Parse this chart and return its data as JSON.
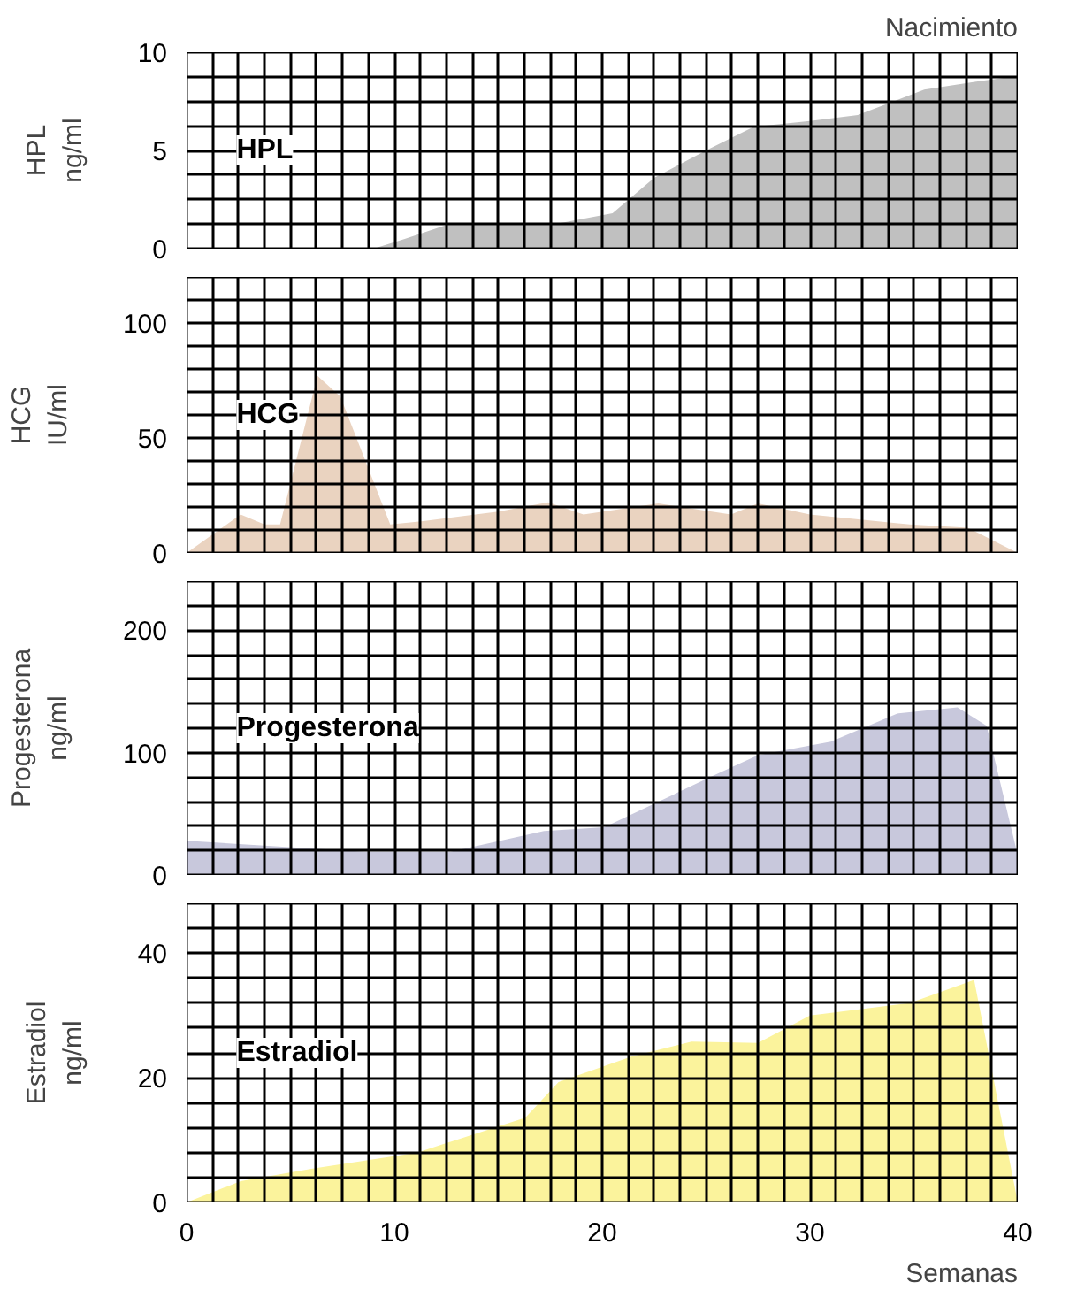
{
  "chart_data": [
    {
      "type": "area",
      "ylabel": "HPL\nng/ml",
      "annotations": [
        "Nacimiento"
      ],
      "tick_labels": "y",
      "grid": true,
      "xlim": [
        0,
        40
      ],
      "xticks": [
        {
          "value": 0,
          "label": null
        },
        {
          "value": 1.25,
          "label": null
        },
        {
          "value": 2.5,
          "label": null
        },
        {
          "value": 3.75,
          "label": null
        },
        {
          "value": 5,
          "label": null
        },
        {
          "value": 6.25,
          "label": null
        },
        {
          "value": 7.5,
          "label": null
        },
        {
          "value": 8.75,
          "label": null
        },
        {
          "value": 10,
          "label": null
        },
        {
          "value": 11.25,
          "label": null
        },
        {
          "value": 12.5,
          "label": null
        },
        {
          "value": 13.75,
          "label": null
        },
        {
          "value": 15,
          "label": null
        },
        {
          "value": 16.25,
          "label": null
        },
        {
          "value": 17.5,
          "label": null
        },
        {
          "value": 18.75,
          "label": null
        },
        {
          "value": 20,
          "label": null
        },
        {
          "value": 21.25,
          "label": null
        },
        {
          "value": 22.5,
          "label": null
        },
        {
          "value": 23.75,
          "label": null
        },
        {
          "value": 25,
          "label": null
        },
        {
          "value": 26.25,
          "label": null
        },
        {
          "value": 27.5,
          "label": null
        },
        {
          "value": 28.75,
          "label": null
        },
        {
          "value": 30,
          "label": null
        },
        {
          "value": 31.25,
          "label": null
        },
        {
          "value": 32.5,
          "label": null
        },
        {
          "value": 33.75,
          "label": null
        },
        {
          "value": 35,
          "label": null
        },
        {
          "value": 36.25,
          "label": null
        },
        {
          "value": 37.5,
          "label": null
        },
        {
          "value": 38.75,
          "label": null
        },
        {
          "value": 40,
          "label": null
        }
      ],
      "ylim": [
        0,
        10
      ],
      "yticks": [
        0,
        {
          "value": 1.25,
          "label": null
        },
        {
          "value": 2.5,
          "label": null
        },
        {
          "value": 3.75,
          "label": null
        },
        5,
        {
          "value": 6.25,
          "label": null
        },
        {
          "value": 7.5,
          "label": null
        },
        {
          "value": 8.75,
          "label": null
        },
        10
      ],
      "series": [
        {
          "name": "HPL",
          "color": "#c0c0c0",
          "x": [
            9,
            10.5,
            12.5,
            17.5,
            20.5,
            22.5,
            25,
            27.3,
            30,
            32.3,
            35.5,
            38,
            40
          ],
          "values": [
            0,
            0.5,
            1.2,
            1.2,
            1.8,
            3.6,
            5.0,
            6.2,
            6.5,
            6.8,
            8.1,
            8.5,
            8.8
          ]
        }
      ]
    },
    {
      "type": "area",
      "ylabel": "HCG\nIU/ml",
      "tick_labels": "y",
      "grid": true,
      "xlim": [
        0,
        40
      ],
      "xticks": [
        {
          "value": 0,
          "label": null
        },
        {
          "value": 1.25,
          "label": null
        },
        {
          "value": 2.5,
          "label": null
        },
        {
          "value": 3.75,
          "label": null
        },
        {
          "value": 5,
          "label": null
        },
        {
          "value": 6.25,
          "label": null
        },
        {
          "value": 7.5,
          "label": null
        },
        {
          "value": 8.75,
          "label": null
        },
        {
          "value": 10,
          "label": null
        },
        {
          "value": 11.25,
          "label": null
        },
        {
          "value": 12.5,
          "label": null
        },
        {
          "value": 13.75,
          "label": null
        },
        {
          "value": 15,
          "label": null
        },
        {
          "value": 16.25,
          "label": null
        },
        {
          "value": 17.5,
          "label": null
        },
        {
          "value": 18.75,
          "label": null
        },
        {
          "value": 20,
          "label": null
        },
        {
          "value": 21.25,
          "label": null
        },
        {
          "value": 22.5,
          "label": null
        },
        {
          "value": 23.75,
          "label": null
        },
        {
          "value": 25,
          "label": null
        },
        {
          "value": 26.25,
          "label": null
        },
        {
          "value": 27.5,
          "label": null
        },
        {
          "value": 28.75,
          "label": null
        },
        {
          "value": 30,
          "label": null
        },
        {
          "value": 31.25,
          "label": null
        },
        {
          "value": 32.5,
          "label": null
        },
        {
          "value": 33.75,
          "label": null
        },
        {
          "value": 35,
          "label": null
        },
        {
          "value": 36.25,
          "label": null
        },
        {
          "value": 37.5,
          "label": null
        },
        {
          "value": 38.75,
          "label": null
        },
        {
          "value": 40,
          "label": null
        }
      ],
      "ylim": [
        0,
        120
      ],
      "yticks": [
        0,
        {
          "value": 10,
          "label": null
        },
        {
          "value": 20,
          "label": null
        },
        {
          "value": 30,
          "label": null
        },
        {
          "value": 40,
          "label": null
        },
        50,
        {
          "value": 60,
          "label": null
        },
        {
          "value": 70,
          "label": null
        },
        {
          "value": 80,
          "label": null
        },
        {
          "value": 90,
          "label": null
        },
        100,
        {
          "value": 110,
          "label": null
        },
        {
          "value": 120,
          "label": null
        }
      ],
      "series": [
        {
          "name": "HCG",
          "color": "#ead3c0",
          "x": [
            0,
            2.6,
            3.75,
            4.5,
            6.3,
            7.4,
            9.8,
            11.4,
            15,
            17.4,
            19.1,
            22.7,
            26.2,
            27.5,
            30,
            34.8,
            37.6,
            40
          ],
          "values": [
            0,
            16.7,
            12.4,
            12.4,
            77,
            68,
            12.4,
            13.8,
            18,
            22,
            16.7,
            21.5,
            16.7,
            21.5,
            16.7,
            12.4,
            11,
            0
          ]
        }
      ]
    },
    {
      "type": "area",
      "ylabel": "Progesterona\nng/ml",
      "tick_labels": "y",
      "grid": true,
      "xlim": [
        0,
        40
      ],
      "xticks": [
        {
          "value": 0,
          "label": null
        },
        {
          "value": 1.25,
          "label": null
        },
        {
          "value": 2.5,
          "label": null
        },
        {
          "value": 3.75,
          "label": null
        },
        {
          "value": 5,
          "label": null
        },
        {
          "value": 6.25,
          "label": null
        },
        {
          "value": 7.5,
          "label": null
        },
        {
          "value": 8.75,
          "label": null
        },
        {
          "value": 10,
          "label": null
        },
        {
          "value": 11.25,
          "label": null
        },
        {
          "value": 12.5,
          "label": null
        },
        {
          "value": 13.75,
          "label": null
        },
        {
          "value": 15,
          "label": null
        },
        {
          "value": 16.25,
          "label": null
        },
        {
          "value": 17.5,
          "label": null
        },
        {
          "value": 18.75,
          "label": null
        },
        {
          "value": 20,
          "label": null
        },
        {
          "value": 21.25,
          "label": null
        },
        {
          "value": 22.5,
          "label": null
        },
        {
          "value": 23.75,
          "label": null
        },
        {
          "value": 25,
          "label": null
        },
        {
          "value": 26.25,
          "label": null
        },
        {
          "value": 27.5,
          "label": null
        },
        {
          "value": 28.75,
          "label": null
        },
        {
          "value": 30,
          "label": null
        },
        {
          "value": 31.25,
          "label": null
        },
        {
          "value": 32.5,
          "label": null
        },
        {
          "value": 33.75,
          "label": null
        },
        {
          "value": 35,
          "label": null
        },
        {
          "value": 36.25,
          "label": null
        },
        {
          "value": 37.5,
          "label": null
        },
        {
          "value": 38.75,
          "label": null
        },
        {
          "value": 40,
          "label": null
        }
      ],
      "ylim": [
        0,
        240
      ],
      "yticks": [
        0,
        {
          "value": 20,
          "label": null
        },
        {
          "value": 40,
          "label": null
        },
        {
          "value": 60,
          "label": null
        },
        {
          "value": 80,
          "label": null
        },
        100,
        {
          "value": 120,
          "label": null
        },
        {
          "value": 140,
          "label": null
        },
        {
          "value": 160,
          "label": null
        },
        {
          "value": 180,
          "label": null
        },
        200,
        {
          "value": 220,
          "label": null
        },
        {
          "value": 240,
          "label": null
        }
      ],
      "series": [
        {
          "name": "Progesterona",
          "color": "#c8c8dc",
          "x": [
            0,
            8.6,
            12.7,
            17.2,
            20.1,
            25.2,
            27.5,
            31,
            34.2,
            37.1,
            38.5,
            40
          ],
          "values": [
            28,
            19,
            19,
            36,
            39,
            80,
            98,
            109,
            132,
            137,
            122,
            16
          ]
        }
      ]
    },
    {
      "type": "area",
      "ylabel": "Estradiol\nng/ml",
      "xlabel": "Semanas",
      "grid": true,
      "xlim": [
        0,
        40
      ],
      "xticks": [
        0,
        {
          "value": 1.25,
          "label": null
        },
        {
          "value": 2.5,
          "label": null
        },
        {
          "value": 3.75,
          "label": null
        },
        {
          "value": 5,
          "label": null
        },
        {
          "value": 6.25,
          "label": null
        },
        {
          "value": 7.5,
          "label": null
        },
        {
          "value": 8.75,
          "label": null
        },
        10,
        {
          "value": 11.25,
          "label": null
        },
        {
          "value": 12.5,
          "label": null
        },
        {
          "value": 13.75,
          "label": null
        },
        {
          "value": 15,
          "label": null
        },
        {
          "value": 16.25,
          "label": null
        },
        {
          "value": 17.5,
          "label": null
        },
        {
          "value": 18.75,
          "label": null
        },
        20,
        {
          "value": 21.25,
          "label": null
        },
        {
          "value": 22.5,
          "label": null
        },
        {
          "value": 23.75,
          "label": null
        },
        {
          "value": 25,
          "label": null
        },
        {
          "value": 26.25,
          "label": null
        },
        {
          "value": 27.5,
          "label": null
        },
        {
          "value": 28.75,
          "label": null
        },
        30,
        {
          "value": 31.25,
          "label": null
        },
        {
          "value": 32.5,
          "label": null
        },
        {
          "value": 33.75,
          "label": null
        },
        {
          "value": 35,
          "label": null
        },
        {
          "value": 36.25,
          "label": null
        },
        {
          "value": 37.5,
          "label": null
        },
        {
          "value": 38.75,
          "label": null
        },
        40
      ],
      "ylim": [
        0,
        48
      ],
      "yticks": [
        0,
        {
          "value": 4,
          "label": null
        },
        {
          "value": 8,
          "label": null
        },
        {
          "value": 12,
          "label": null
        },
        {
          "value": 16,
          "label": null
        },
        20,
        {
          "value": 24,
          "label": null
        },
        {
          "value": 28,
          "label": null
        },
        {
          "value": 32,
          "label": null
        },
        {
          "value": 36,
          "label": null
        },
        40,
        {
          "value": 44,
          "label": null
        },
        {
          "value": 48,
          "label": null
        }
      ],
      "series": [
        {
          "name": "Estradiol",
          "color": "#fbf39c",
          "x": [
            0,
            2.6,
            6,
            11.1,
            16.3,
            17.9,
            21.4,
            24.3,
            27.5,
            30,
            34.8,
            37.9,
            40
          ],
          "values": [
            0,
            3.4,
            5.4,
            8,
            13.6,
            19.3,
            23.4,
            25.8,
            25.6,
            30,
            32,
            35.7,
            0
          ]
        }
      ]
    }
  ]
}
